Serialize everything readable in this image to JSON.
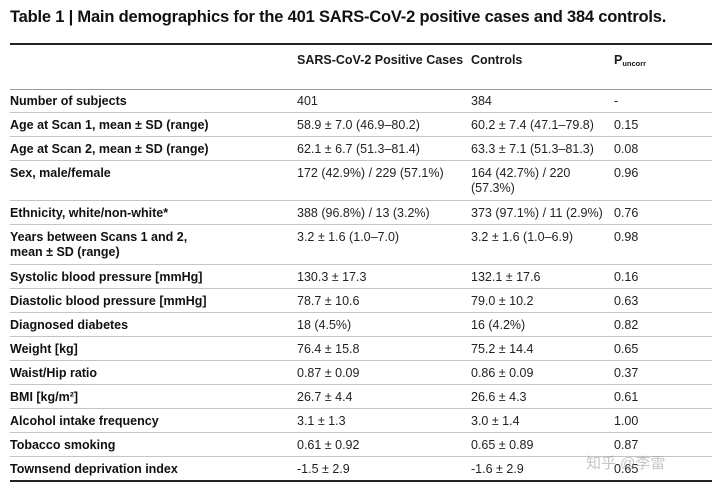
{
  "title": "Table 1 | Main demographics for the 401 SARS-CoV-2 positive cases and 384 controls.",
  "header": {
    "col1": "",
    "col2": "SARS-CoV-2 Positive Cases",
    "col3": "Controls",
    "col4_main": "P",
    "col4_sub": "uncorr"
  },
  "rows": [
    {
      "label": "Number of subjects",
      "cases": "401",
      "controls": "384",
      "p": "-"
    },
    {
      "label": "Age at Scan 1, mean ± SD (range)",
      "cases": "58.9 ± 7.0 (46.9–80.2)",
      "controls": "60.2 ± 7.4 (47.1–79.8)",
      "p": "0.15"
    },
    {
      "label": "Age at Scan 2, mean ± SD (range)",
      "cases": "62.1 ± 6.7 (51.3–81.4)",
      "controls": "63.3 ± 7.1 (51.3–81.3)",
      "p": "0.08"
    },
    {
      "label": "Sex, male/female",
      "cases": "172 (42.9%) / 229 (57.1%)",
      "controls": "164 (42.7%) / 220 (57.3%)",
      "p": "0.96"
    },
    {
      "label": "Ethnicity, white/non-white*",
      "cases": "388 (96.8%) / 13 (3.2%)",
      "controls": "373 (97.1%) / 11 (2.9%)",
      "p": "0.76"
    },
    {
      "label": "Years between Scans 1 and 2, mean ± SD (range)",
      "cases": "3.2 ± 1.6 (1.0–7.0)",
      "controls": "3.2 ± 1.6 (1.0–6.9)",
      "p": "0.98"
    },
    {
      "label": "Systolic blood pressure [mmHg]",
      "cases": "130.3 ± 17.3",
      "controls": "132.1 ± 17.6",
      "p": "0.16"
    },
    {
      "label": "Diastolic blood pressure [mmHg]",
      "cases": "78.7 ± 10.6",
      "controls": "79.0 ± 10.2",
      "p": "0.63"
    },
    {
      "label": "Diagnosed diabetes",
      "cases": "18 (4.5%)",
      "controls": "16 (4.2%)",
      "p": "0.82"
    },
    {
      "label": "Weight [kg]",
      "cases": "76.4 ± 15.8",
      "controls": "75.2 ± 14.4",
      "p": "0.65"
    },
    {
      "label": "Waist/Hip ratio",
      "cases": "0.87 ± 0.09",
      "controls": "0.86 ± 0.09",
      "p": "0.37"
    },
    {
      "label": "BMI [kg/m²]",
      "cases": "26.7 ± 4.4",
      "controls": "26.6 ± 4.3",
      "p": "0.61"
    },
    {
      "label": "Alcohol intake frequency",
      "cases": "3.1 ± 1.3",
      "controls": "3.0 ± 1.4",
      "p": "1.00"
    },
    {
      "label": "Tobacco smoking",
      "cases": "0.61 ± 0.92",
      "controls": "0.65 ± 0.89",
      "p": "0.87"
    },
    {
      "label": "Townsend deprivation index",
      "cases": "-1.5 ± 2.9",
      "controls": "-1.6 ± 2.9",
      "p": "0.65"
    }
  ],
  "watermark": "知乎 @李雷"
}
